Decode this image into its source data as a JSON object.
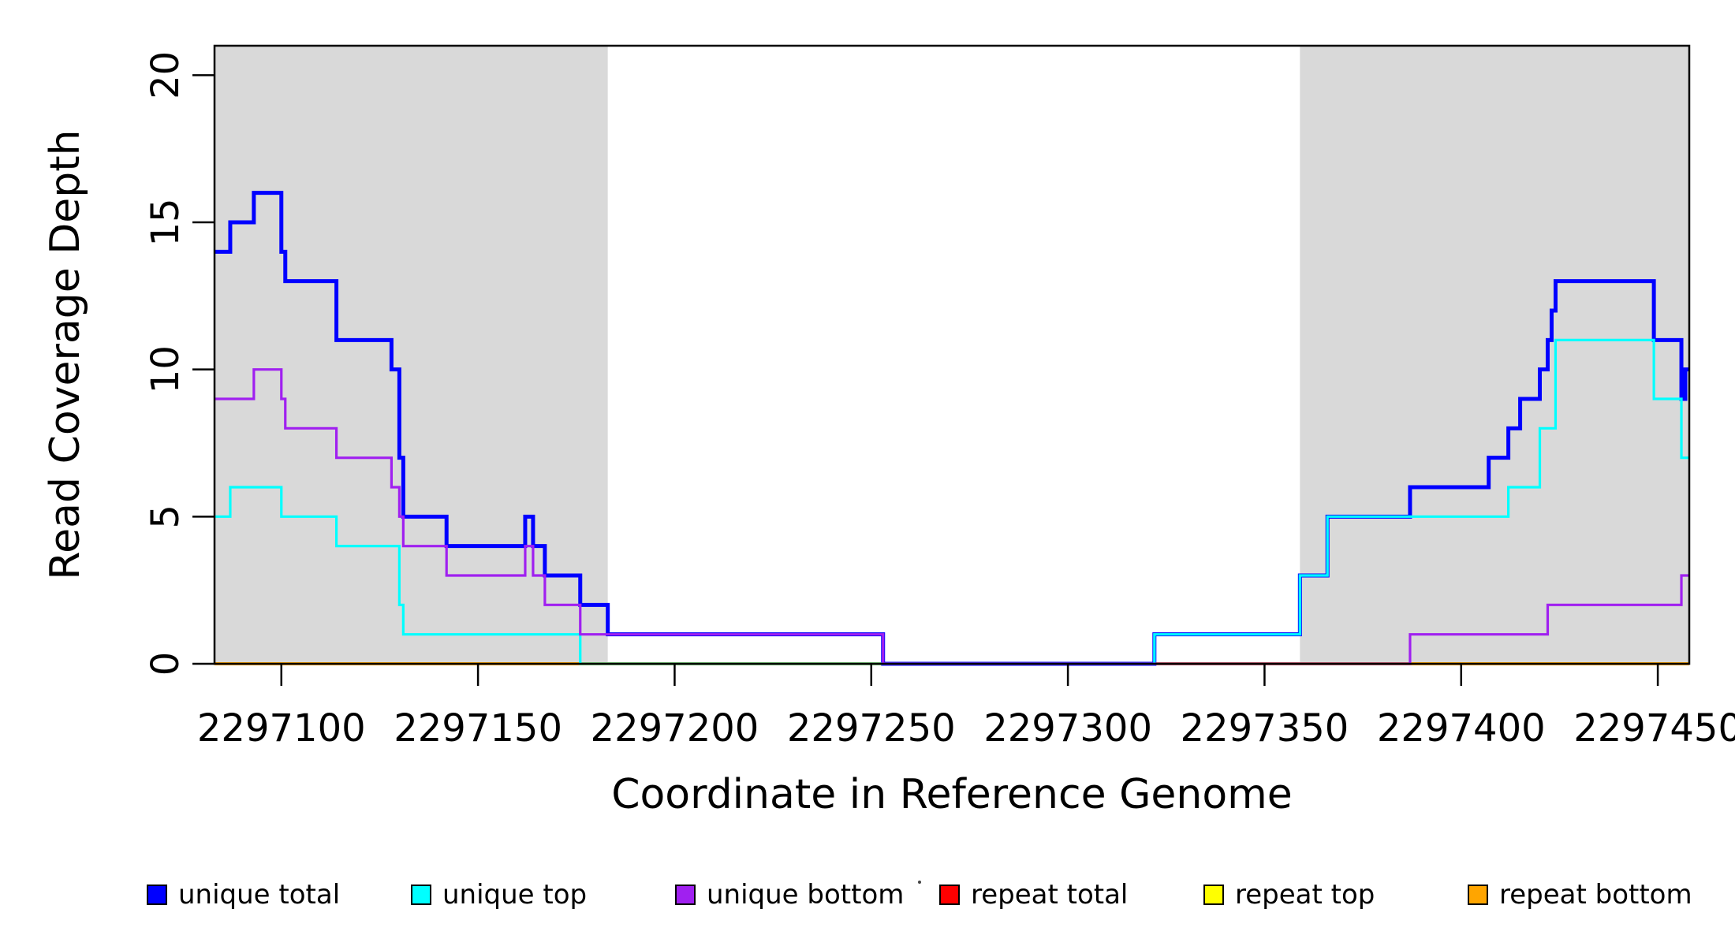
{
  "chart_data": {
    "type": "line",
    "subtype": "step-coverage-plot",
    "title": "",
    "xlabel": "Coordinate in Reference Genome",
    "ylabel": "Read Coverage Depth",
    "xlim": [
      2297083,
      2297458
    ],
    "ylim": [
      0,
      21
    ],
    "grid": false,
    "x_ticks": [
      2297100,
      2297150,
      2297200,
      2297250,
      2297300,
      2297350,
      2297400,
      2297450
    ],
    "y_ticks": [
      0,
      5,
      10,
      15,
      20
    ],
    "shade_color": "#d9d9d9",
    "shaded_regions": [
      {
        "x0": 2297083,
        "x1": 2297183
      },
      {
        "x0": 2297359,
        "x1": 2297458
      }
    ],
    "series": [
      {
        "name": "repeat total",
        "color": "#ff0000",
        "lw": 3,
        "steps": [
          [
            2297083,
            0
          ]
        ],
        "end": 2297458
      },
      {
        "name": "repeat top",
        "color": "#ffff00",
        "lw": 3,
        "steps": [
          [
            2297083,
            0
          ]
        ],
        "end": 2297458
      },
      {
        "name": "repeat bottom",
        "color": "#ffa500",
        "lw": 4,
        "steps": [
          [
            2297083,
            0
          ]
        ],
        "end": 2297458
      },
      {
        "name": "unique total",
        "color": "#0000ff",
        "lw": 5,
        "steps": [
          [
            2297083,
            14
          ],
          [
            2297087,
            15
          ],
          [
            2297093,
            16
          ],
          [
            2297100,
            14
          ],
          [
            2297101,
            13
          ],
          [
            2297114,
            11
          ],
          [
            2297128,
            10
          ],
          [
            2297130,
            7
          ],
          [
            2297131,
            5
          ],
          [
            2297142,
            4
          ],
          [
            2297162,
            5
          ],
          [
            2297164,
            4
          ],
          [
            2297167,
            3
          ],
          [
            2297176,
            2
          ],
          [
            2297183,
            1
          ],
          [
            2297253,
            0
          ],
          [
            2297322,
            1
          ],
          [
            2297359,
            3
          ],
          [
            2297366,
            5
          ],
          [
            2297387,
            6
          ],
          [
            2297407,
            7
          ],
          [
            2297412,
            8
          ],
          [
            2297415,
            9
          ],
          [
            2297420,
            10
          ],
          [
            2297422,
            11
          ],
          [
            2297423,
            12
          ],
          [
            2297424,
            13
          ],
          [
            2297449,
            11
          ],
          [
            2297456,
            9
          ],
          [
            2297457,
            10
          ]
        ],
        "end": 2297458
      },
      {
        "name": "unique top",
        "color": "#00ffff",
        "lw": 3.2,
        "steps": [
          [
            2297083,
            5
          ],
          [
            2297087,
            6
          ],
          [
            2297100,
            5
          ],
          [
            2297114,
            4
          ],
          [
            2297130,
            2
          ],
          [
            2297131,
            1
          ],
          [
            2297176,
            0
          ],
          [
            2297322,
            1
          ],
          [
            2297359,
            3
          ],
          [
            2297366,
            5
          ],
          [
            2297412,
            6
          ],
          [
            2297420,
            8
          ],
          [
            2297424,
            11
          ],
          [
            2297449,
            9
          ],
          [
            2297456,
            7
          ]
        ],
        "end": 2297458
      },
      {
        "name": "unique bottom",
        "color": "#a020f0",
        "lw": 3.2,
        "steps": [
          [
            2297083,
            9
          ],
          [
            2297093,
            10
          ],
          [
            2297100,
            9
          ],
          [
            2297101,
            8
          ],
          [
            2297114,
            7
          ],
          [
            2297128,
            6
          ],
          [
            2297130,
            5
          ],
          [
            2297131,
            4
          ],
          [
            2297142,
            3
          ],
          [
            2297162,
            4
          ],
          [
            2297164,
            3
          ],
          [
            2297167,
            2
          ],
          [
            2297176,
            1
          ],
          [
            2297253,
            0
          ],
          [
            2297387,
            1
          ],
          [
            2297422,
            2
          ],
          [
            2297456,
            3
          ]
        ],
        "end": 2297458
      }
    ]
  },
  "legend": {
    "items": [
      {
        "label": "unique total",
        "color": "#0000ff"
      },
      {
        "label": "unique top",
        "color": "#00ffff"
      },
      {
        "label": "unique bottom",
        "color": "#a020f0"
      },
      {
        "label": "repeat total",
        "color": "#ff0000"
      },
      {
        "label": "repeat top",
        "color": "#ffff00"
      },
      {
        "label": "repeat bottom",
        "color": "#ffa500"
      }
    ],
    "stray_mark": "·"
  }
}
